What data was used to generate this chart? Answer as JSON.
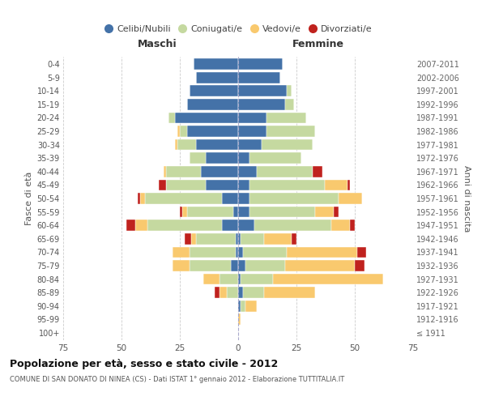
{
  "age_groups": [
    "100+",
    "95-99",
    "90-94",
    "85-89",
    "80-84",
    "75-79",
    "70-74",
    "65-69",
    "60-64",
    "55-59",
    "50-54",
    "45-49",
    "40-44",
    "35-39",
    "30-34",
    "25-29",
    "20-24",
    "15-19",
    "10-14",
    "5-9",
    "0-4"
  ],
  "birth_years": [
    "≤ 1911",
    "1912-1916",
    "1917-1921",
    "1922-1926",
    "1927-1931",
    "1932-1936",
    "1937-1941",
    "1942-1946",
    "1947-1951",
    "1952-1956",
    "1957-1961",
    "1962-1966",
    "1967-1971",
    "1972-1976",
    "1977-1981",
    "1982-1986",
    "1987-1991",
    "1992-1996",
    "1997-2001",
    "2002-2006",
    "2007-2011"
  ],
  "maschi": {
    "celibi": [
      0,
      0,
      0,
      0,
      0,
      3,
      1,
      1,
      7,
      2,
      7,
      14,
      16,
      14,
      18,
      22,
      27,
      22,
      21,
      18,
      19
    ],
    "coniugati": [
      0,
      0,
      0,
      5,
      8,
      18,
      20,
      17,
      32,
      20,
      33,
      17,
      15,
      7,
      8,
      3,
      3,
      0,
      0,
      0,
      0
    ],
    "vedovi": [
      0,
      0,
      0,
      3,
      7,
      7,
      7,
      2,
      5,
      2,
      2,
      0,
      1,
      0,
      1,
      1,
      0,
      0,
      0,
      0,
      0
    ],
    "divorziati": [
      0,
      0,
      0,
      2,
      0,
      0,
      0,
      3,
      4,
      1,
      1,
      3,
      0,
      0,
      0,
      0,
      0,
      0,
      0,
      0,
      0
    ]
  },
  "femmine": {
    "nubili": [
      0,
      0,
      1,
      2,
      1,
      3,
      2,
      1,
      7,
      5,
      5,
      5,
      8,
      5,
      10,
      12,
      12,
      20,
      21,
      18,
      19
    ],
    "coniugate": [
      0,
      0,
      2,
      9,
      14,
      17,
      19,
      10,
      33,
      28,
      38,
      32,
      24,
      22,
      22,
      21,
      17,
      4,
      2,
      0,
      0
    ],
    "vedove": [
      0,
      1,
      5,
      22,
      47,
      30,
      30,
      12,
      8,
      8,
      10,
      10,
      0,
      0,
      0,
      0,
      0,
      0,
      0,
      0,
      0
    ],
    "divorziate": [
      0,
      0,
      0,
      0,
      0,
      4,
      4,
      2,
      2,
      2,
      0,
      1,
      4,
      0,
      0,
      0,
      0,
      0,
      0,
      0,
      0
    ]
  },
  "colors": {
    "celibi": "#4472a8",
    "coniugati": "#c5d9a0",
    "vedovi": "#f9c96e",
    "divorziati": "#c0221e"
  },
  "xlim": 75,
  "title": "Popolazione per età, sesso e stato civile - 2012",
  "subtitle": "COMUNE DI SAN DONATO DI NINEA (CS) - Dati ISTAT 1° gennaio 2012 - Elaborazione TUTTITALIA.IT",
  "ylabel_left": "Fasce di età",
  "ylabel_right": "Anni di nascita",
  "header_left": "Maschi",
  "header_right": "Femmine"
}
